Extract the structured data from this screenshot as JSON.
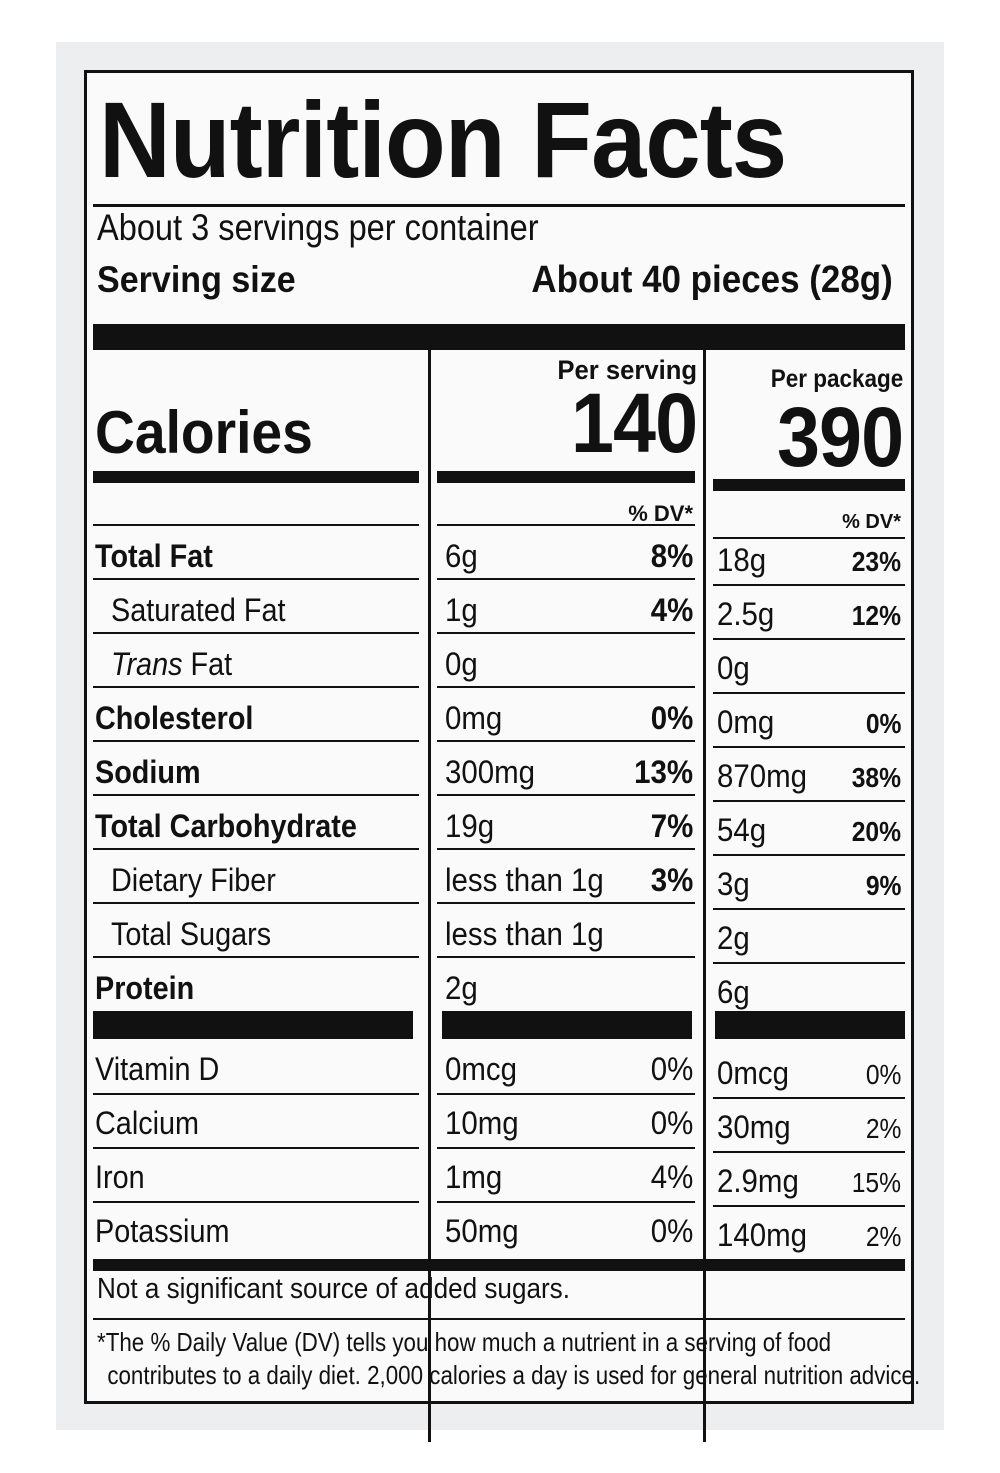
{
  "label": {
    "title": "Nutrition Facts",
    "servings_per_container": "About 3 servings per container",
    "serving_size_label": "Serving size",
    "serving_size_value": "About 40 pieces (28g)",
    "calories_label": "Calories",
    "per_serving_header": "Per serving",
    "per_package_header": "Per package",
    "calories_per_serving": "140",
    "calories_per_package": "390",
    "dv_header": "% DV*",
    "nutrients": [
      {
        "name": "Total Fat",
        "serving_amount": "6g",
        "serving_dv": "8%",
        "package_amount": "18g",
        "package_dv": "23%"
      },
      {
        "name": "Saturated Fat",
        "serving_amount": "1g",
        "serving_dv": "4%",
        "package_amount": "2.5g",
        "package_dv": "12%"
      },
      {
        "name_italic": "Trans",
        "name_rest": " Fat",
        "serving_amount": "0g",
        "serving_dv": "",
        "package_amount": "0g",
        "package_dv": ""
      },
      {
        "name": "Cholesterol",
        "serving_amount": "0mg",
        "serving_dv": "0%",
        "package_amount": "0mg",
        "package_dv": "0%"
      },
      {
        "name": "Sodium",
        "serving_amount": "300mg",
        "serving_dv": "13%",
        "package_amount": "870mg",
        "package_dv": "38%"
      },
      {
        "name": "Total Carbohydrate",
        "serving_amount": "19g",
        "serving_dv": "7%",
        "package_amount": "54g",
        "package_dv": "20%"
      },
      {
        "name": "Dietary Fiber",
        "serving_amount": "less than 1g",
        "serving_dv": "3%",
        "package_amount": "3g",
        "package_dv": "9%"
      },
      {
        "name": "Total Sugars",
        "serving_amount": "less than 1g",
        "serving_dv": "",
        "package_amount": "2g",
        "package_dv": ""
      },
      {
        "name": "Protein",
        "serving_amount": "2g",
        "serving_dv": "",
        "package_amount": "6g",
        "package_dv": ""
      }
    ],
    "vitamins": [
      {
        "name": "Vitamin D",
        "serving_amount": "0mcg",
        "serving_dv": "0%",
        "package_amount": "0mcg",
        "package_dv": "0%"
      },
      {
        "name": "Calcium",
        "serving_amount": "10mg",
        "serving_dv": "0%",
        "package_amount": "30mg",
        "package_dv": "2%"
      },
      {
        "name": "Iron",
        "serving_amount": "1mg",
        "serving_dv": "4%",
        "package_amount": "2.9mg",
        "package_dv": "15%"
      },
      {
        "name": "Potassium",
        "serving_amount": "50mg",
        "serving_dv": "0%",
        "package_amount": "140mg",
        "package_dv": "2%"
      }
    ],
    "added_sugars_note": "Not a significant source of added sugars.",
    "footnote_line1": "*The % Daily Value (DV) tells you how much a nutrient in a serving of food",
    "footnote_line2": "contributes to a daily diet. 2,000 calories a day is used for general nutrition advice."
  }
}
